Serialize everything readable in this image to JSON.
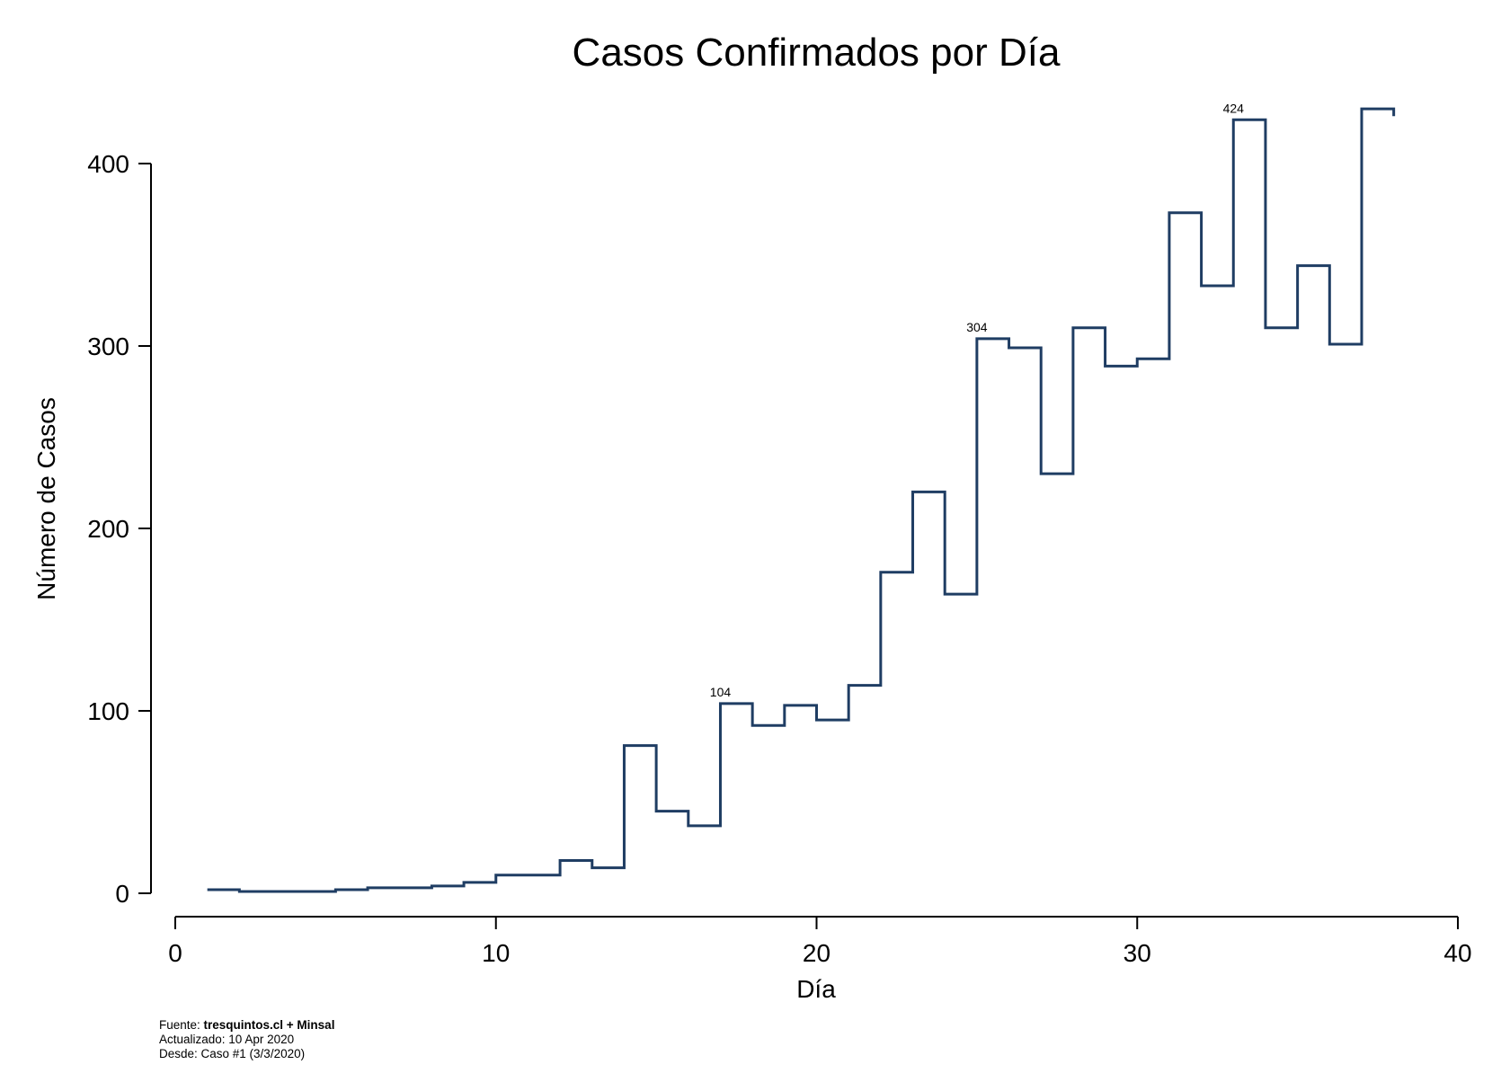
{
  "chart_data": {
    "type": "line",
    "style": "step",
    "title": "Casos Confirmados por Día",
    "xlabel": "Día",
    "ylabel": "Número de Casos",
    "xlim": [
      0,
      40
    ],
    "ylim": [
      0,
      400
    ],
    "xticks": [
      0,
      10,
      20,
      30,
      40
    ],
    "yticks": [
      0,
      100,
      200,
      300,
      400
    ],
    "grid": false,
    "color": "#1f3d63",
    "x": [
      1,
      2,
      3,
      4,
      5,
      6,
      7,
      8,
      9,
      10,
      11,
      12,
      13,
      14,
      15,
      16,
      17,
      18,
      19,
      20,
      21,
      22,
      23,
      24,
      25,
      26,
      27,
      28,
      29,
      30,
      31,
      32,
      33,
      34,
      35,
      36,
      37,
      38
    ],
    "values": [
      2,
      1,
      1,
      1,
      2,
      3,
      3,
      4,
      6,
      10,
      10,
      18,
      14,
      81,
      45,
      37,
      104,
      92,
      103,
      95,
      114,
      176,
      220,
      164,
      304,
      299,
      230,
      310,
      289,
      293,
      373,
      333,
      424,
      310,
      344,
      301,
      430,
      426
    ],
    "annotations": [
      {
        "x": 17,
        "y": 104,
        "label": "104"
      },
      {
        "x": 25,
        "y": 304,
        "label": "304"
      },
      {
        "x": 33,
        "y": 424,
        "label": "424"
      }
    ]
  },
  "footer": {
    "source_prefix": "Fuente: ",
    "source_bold": "tresquintos.cl + Minsal",
    "updated": "Actualizado: 10 Apr 2020",
    "since": "Desde: Caso #1 (3/3/2020)"
  }
}
